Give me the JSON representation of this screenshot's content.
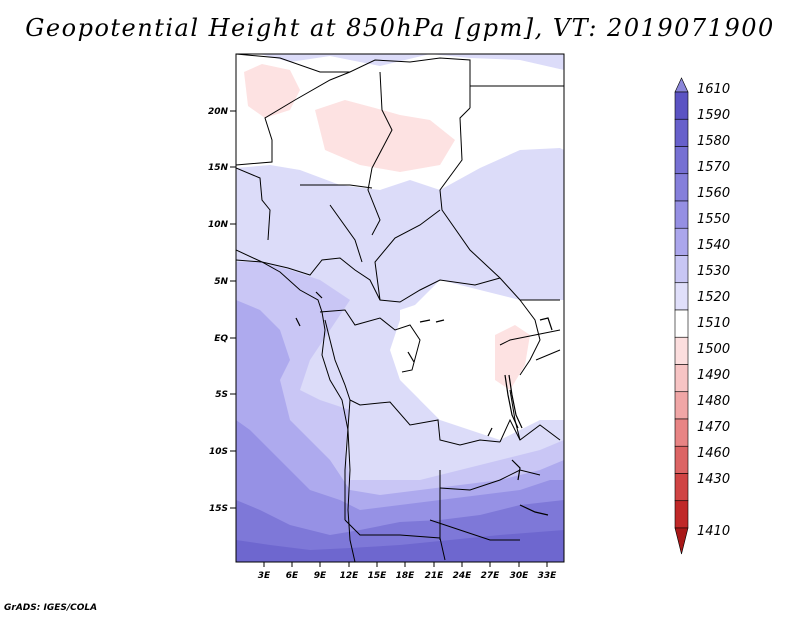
{
  "title": "Geopotential Height at 850hPa [gpm], VT: 2019071900",
  "footer": "GrADS: IGES/COLA",
  "map": {
    "lat_labels": [
      "20N",
      "15N",
      "10N",
      "5N",
      "EQ",
      "5S",
      "10S",
      "15S"
    ],
    "lon_labels": [
      "3E",
      "6E",
      "9E",
      "12E",
      "15E",
      "18E",
      "21E",
      "24E",
      "27E",
      "30E",
      "33E"
    ]
  },
  "colorbar": {
    "levels": [
      "1610",
      "1590",
      "1580",
      "1570",
      "1560",
      "1550",
      "1540",
      "1530",
      "1520",
      "1510",
      "1500",
      "1490",
      "1480",
      "1470",
      "1460",
      "1430",
      "1410"
    ],
    "colors": [
      "#8b86d9",
      "#5b53c3",
      "#6760cb",
      "#7670d3",
      "#857fdb",
      "#958fe3",
      "#aba6ec",
      "#c8c6f4",
      "#e0dffa",
      "#ffffff",
      "#fcdede",
      "#f7c4c4",
      "#f0a6a6",
      "#e88484",
      "#dc6464",
      "#d04444",
      "#c02828",
      "#a81818"
    ]
  }
}
